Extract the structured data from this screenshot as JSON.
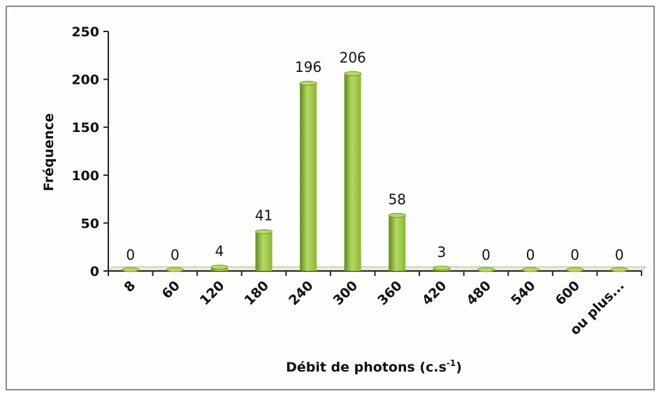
{
  "chart_data": {
    "type": "bar",
    "categories": [
      "8",
      "60",
      "120",
      "180",
      "240",
      "300",
      "360",
      "420",
      "480",
      "540",
      "600",
      "ou plus..."
    ],
    "values": [
      0,
      0,
      4,
      41,
      196,
      206,
      58,
      3,
      0,
      0,
      0,
      0
    ],
    "data_labels": [
      "0",
      "0",
      "4",
      "41",
      "196",
      "206",
      "58",
      "3",
      "0",
      "0",
      "0",
      "0"
    ],
    "ylabel": "Fréquence",
    "xlabel": "Débit de photons (c.s",
    "xlabel_superscript": "-1",
    "xlabel_suffix": ")",
    "ylim": [
      0,
      250
    ],
    "yticks": [
      0,
      50,
      100,
      150,
      200,
      250
    ],
    "grid": false,
    "bar_color": "#8bb832",
    "bar_dark_color": "#5f8a1c",
    "bar_light_color": "#b6d964"
  }
}
